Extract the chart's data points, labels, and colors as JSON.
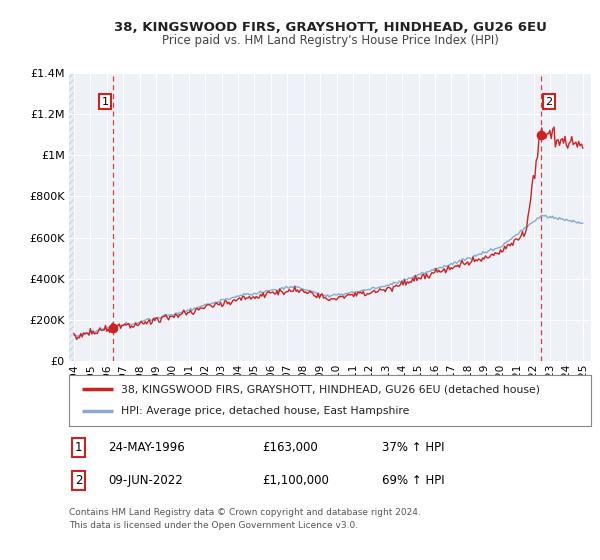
{
  "title1": "38, KINGSWOOD FIRS, GRAYSHOTT, HINDHEAD, GU26 6EU",
  "title2": "Price paid vs. HM Land Registry's House Price Index (HPI)",
  "bg_color": "#e8eef6",
  "plot_bg": "#eef2f8",
  "hatch_color": "#c8d8ea",
  "red_color": "#cc2222",
  "blue_color": "#88aacc",
  "grid_color": "#ffffff",
  "ylim": [
    0,
    1400000
  ],
  "yticks": [
    0,
    200000,
    400000,
    600000,
    800000,
    1000000,
    1200000,
    1400000
  ],
  "ytick_labels": [
    "£0",
    "£200K",
    "£400K",
    "£600K",
    "£800K",
    "£1M",
    "£1.2M",
    "£1.4M"
  ],
  "xmin": 1993.7,
  "xmax": 2025.5,
  "xticks": [
    1994,
    1995,
    1996,
    1997,
    1998,
    1999,
    2000,
    2001,
    2002,
    2003,
    2004,
    2005,
    2006,
    2007,
    2008,
    2009,
    2010,
    2011,
    2012,
    2013,
    2014,
    2015,
    2016,
    2017,
    2018,
    2019,
    2020,
    2021,
    2022,
    2023,
    2024,
    2025
  ],
  "sale1_x": 1996.39,
  "sale1_y": 163000,
  "sale2_x": 2022.44,
  "sale2_y": 1100000,
  "legend_label1": "38, KINGSWOOD FIRS, GRAYSHOTT, HINDHEAD, GU26 6EU (detached house)",
  "legend_label2": "HPI: Average price, detached house, East Hampshire",
  "note1_date": "24-MAY-1996",
  "note1_price": "£163,000",
  "note1_hpi": "37% ↑ HPI",
  "note2_date": "09-JUN-2022",
  "note2_price": "£1,100,000",
  "note2_hpi": "69% ↑ HPI",
  "footer": "Contains HM Land Registry data © Crown copyright and database right 2024.\nThis data is licensed under the Open Government Licence v3.0."
}
